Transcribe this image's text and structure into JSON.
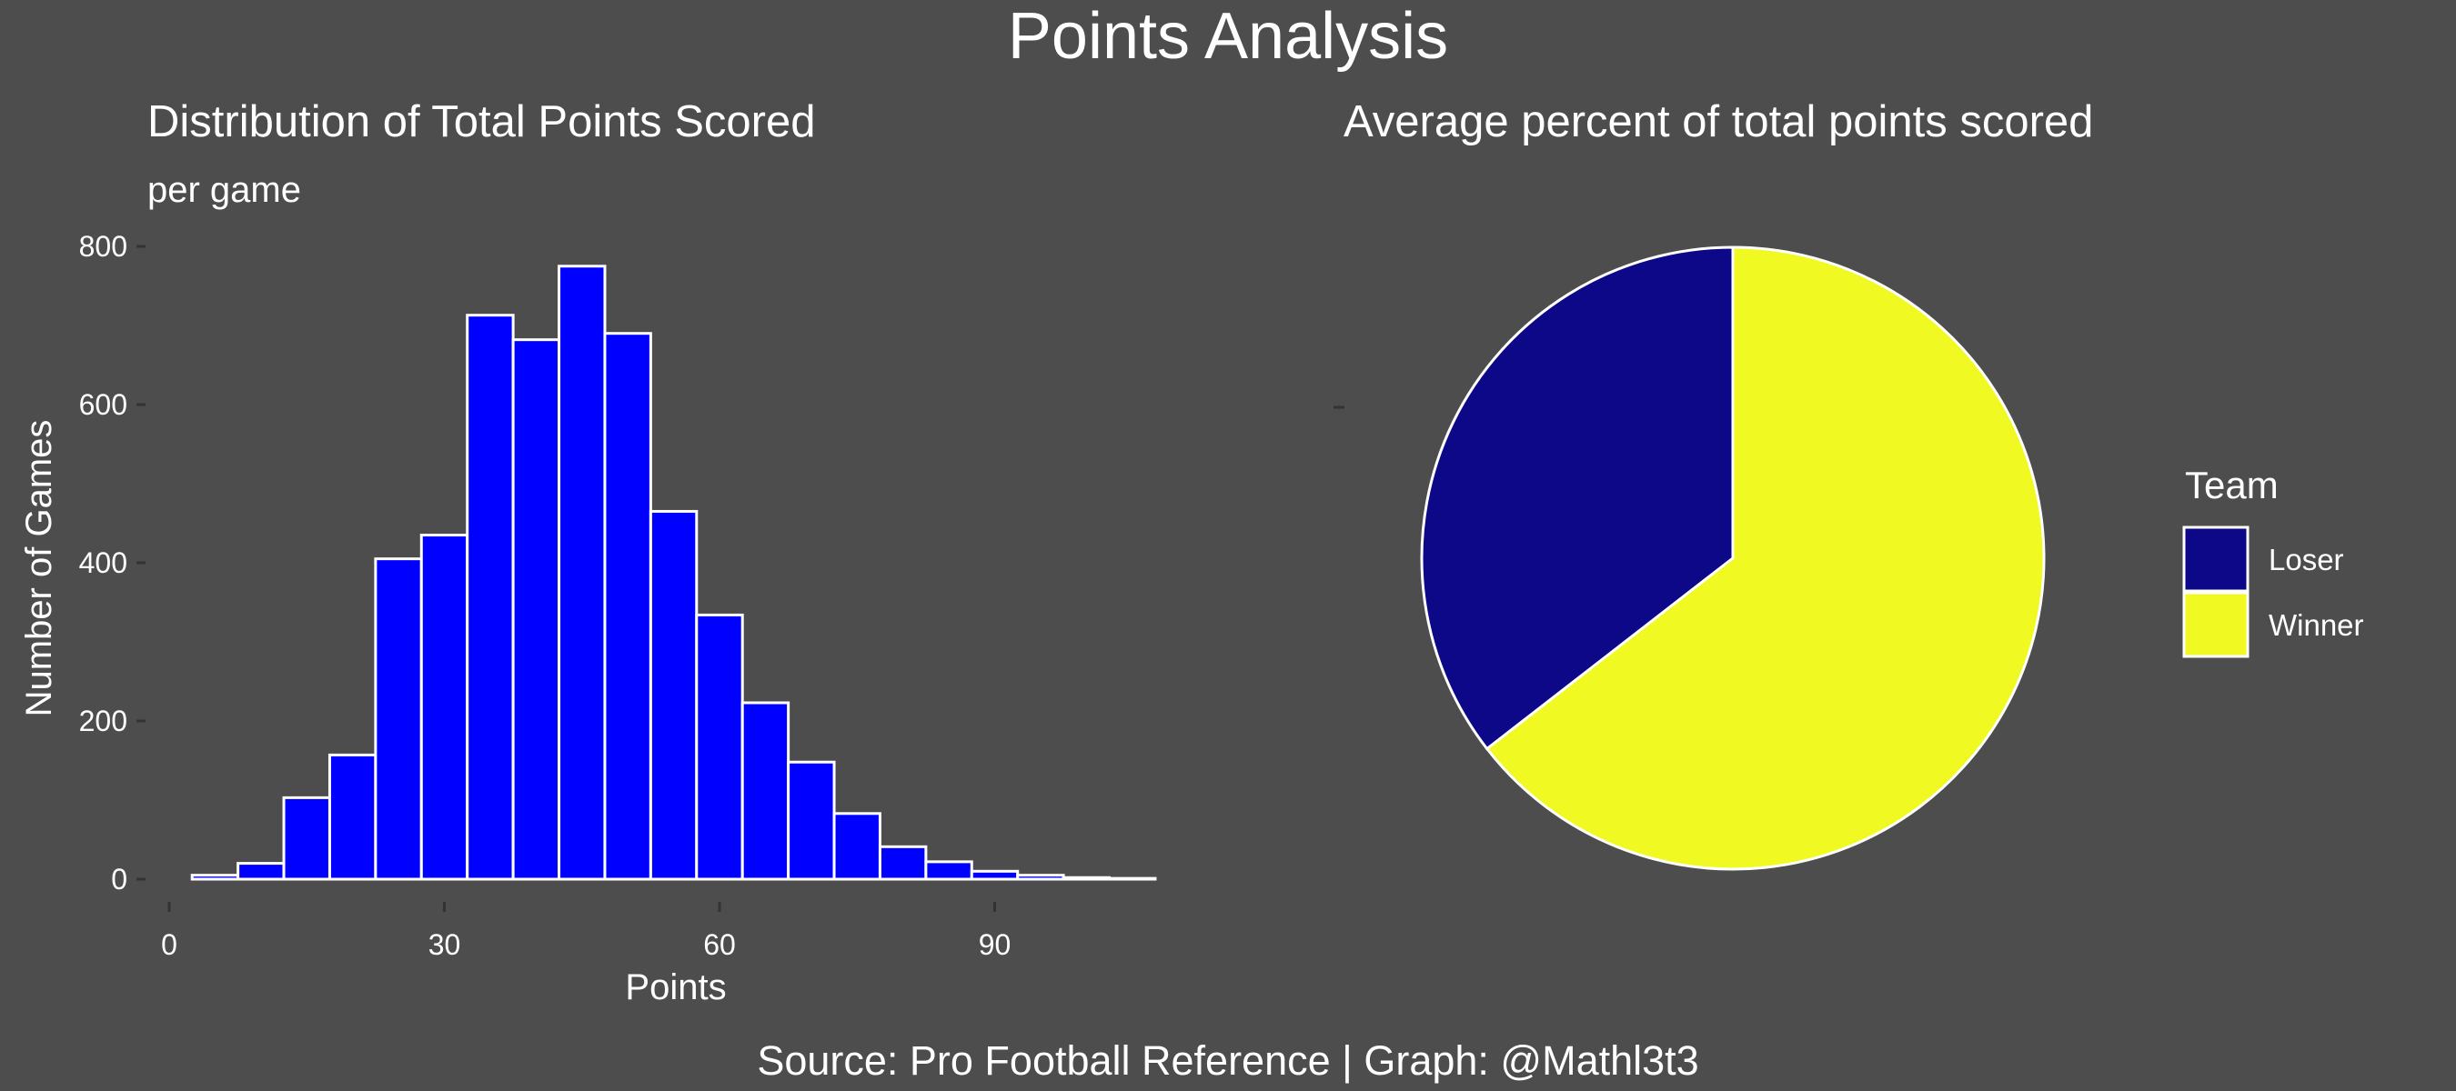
{
  "title": "Points Analysis",
  "caption": "Source: Pro Football Reference | Graph: @Mathl3t3",
  "colors": {
    "background": "#4d4d4d",
    "text": "#ffffff",
    "bar_fill": "#0000ff",
    "bar_border": "#ffffff",
    "loser": "#0d0887",
    "winner": "#f0f921",
    "tick": "#333333"
  },
  "chart_data": [
    {
      "type": "bar",
      "title": "Distribution of Total Points Scored",
      "subtitle": "per game",
      "xlabel": "Points",
      "ylabel": "Number of Games",
      "bin_width": 5,
      "x": [
        5,
        10,
        15,
        20,
        25,
        30,
        35,
        40,
        45,
        50,
        55,
        60,
        65,
        70,
        75,
        80,
        85,
        90,
        95,
        100,
        105
      ],
      "values": [
        5,
        20,
        103,
        157,
        405,
        435,
        713,
        682,
        775,
        690,
        465,
        334,
        223,
        148,
        83,
        41,
        22,
        10,
        5,
        2,
        1
      ],
      "xlim": [
        0,
        108
      ],
      "ylim": [
        0,
        800
      ],
      "xticks": [
        0,
        30,
        60,
        90
      ],
      "yticks": [
        0,
        200,
        400,
        600,
        800
      ],
      "grid": false
    },
    {
      "type": "pie",
      "title": "Average percent of total points scored",
      "legend_title": "Team",
      "legend_position": "right",
      "categories": [
        "Loser",
        "Winner"
      ],
      "values": [
        35.5,
        64.5
      ]
    }
  ]
}
